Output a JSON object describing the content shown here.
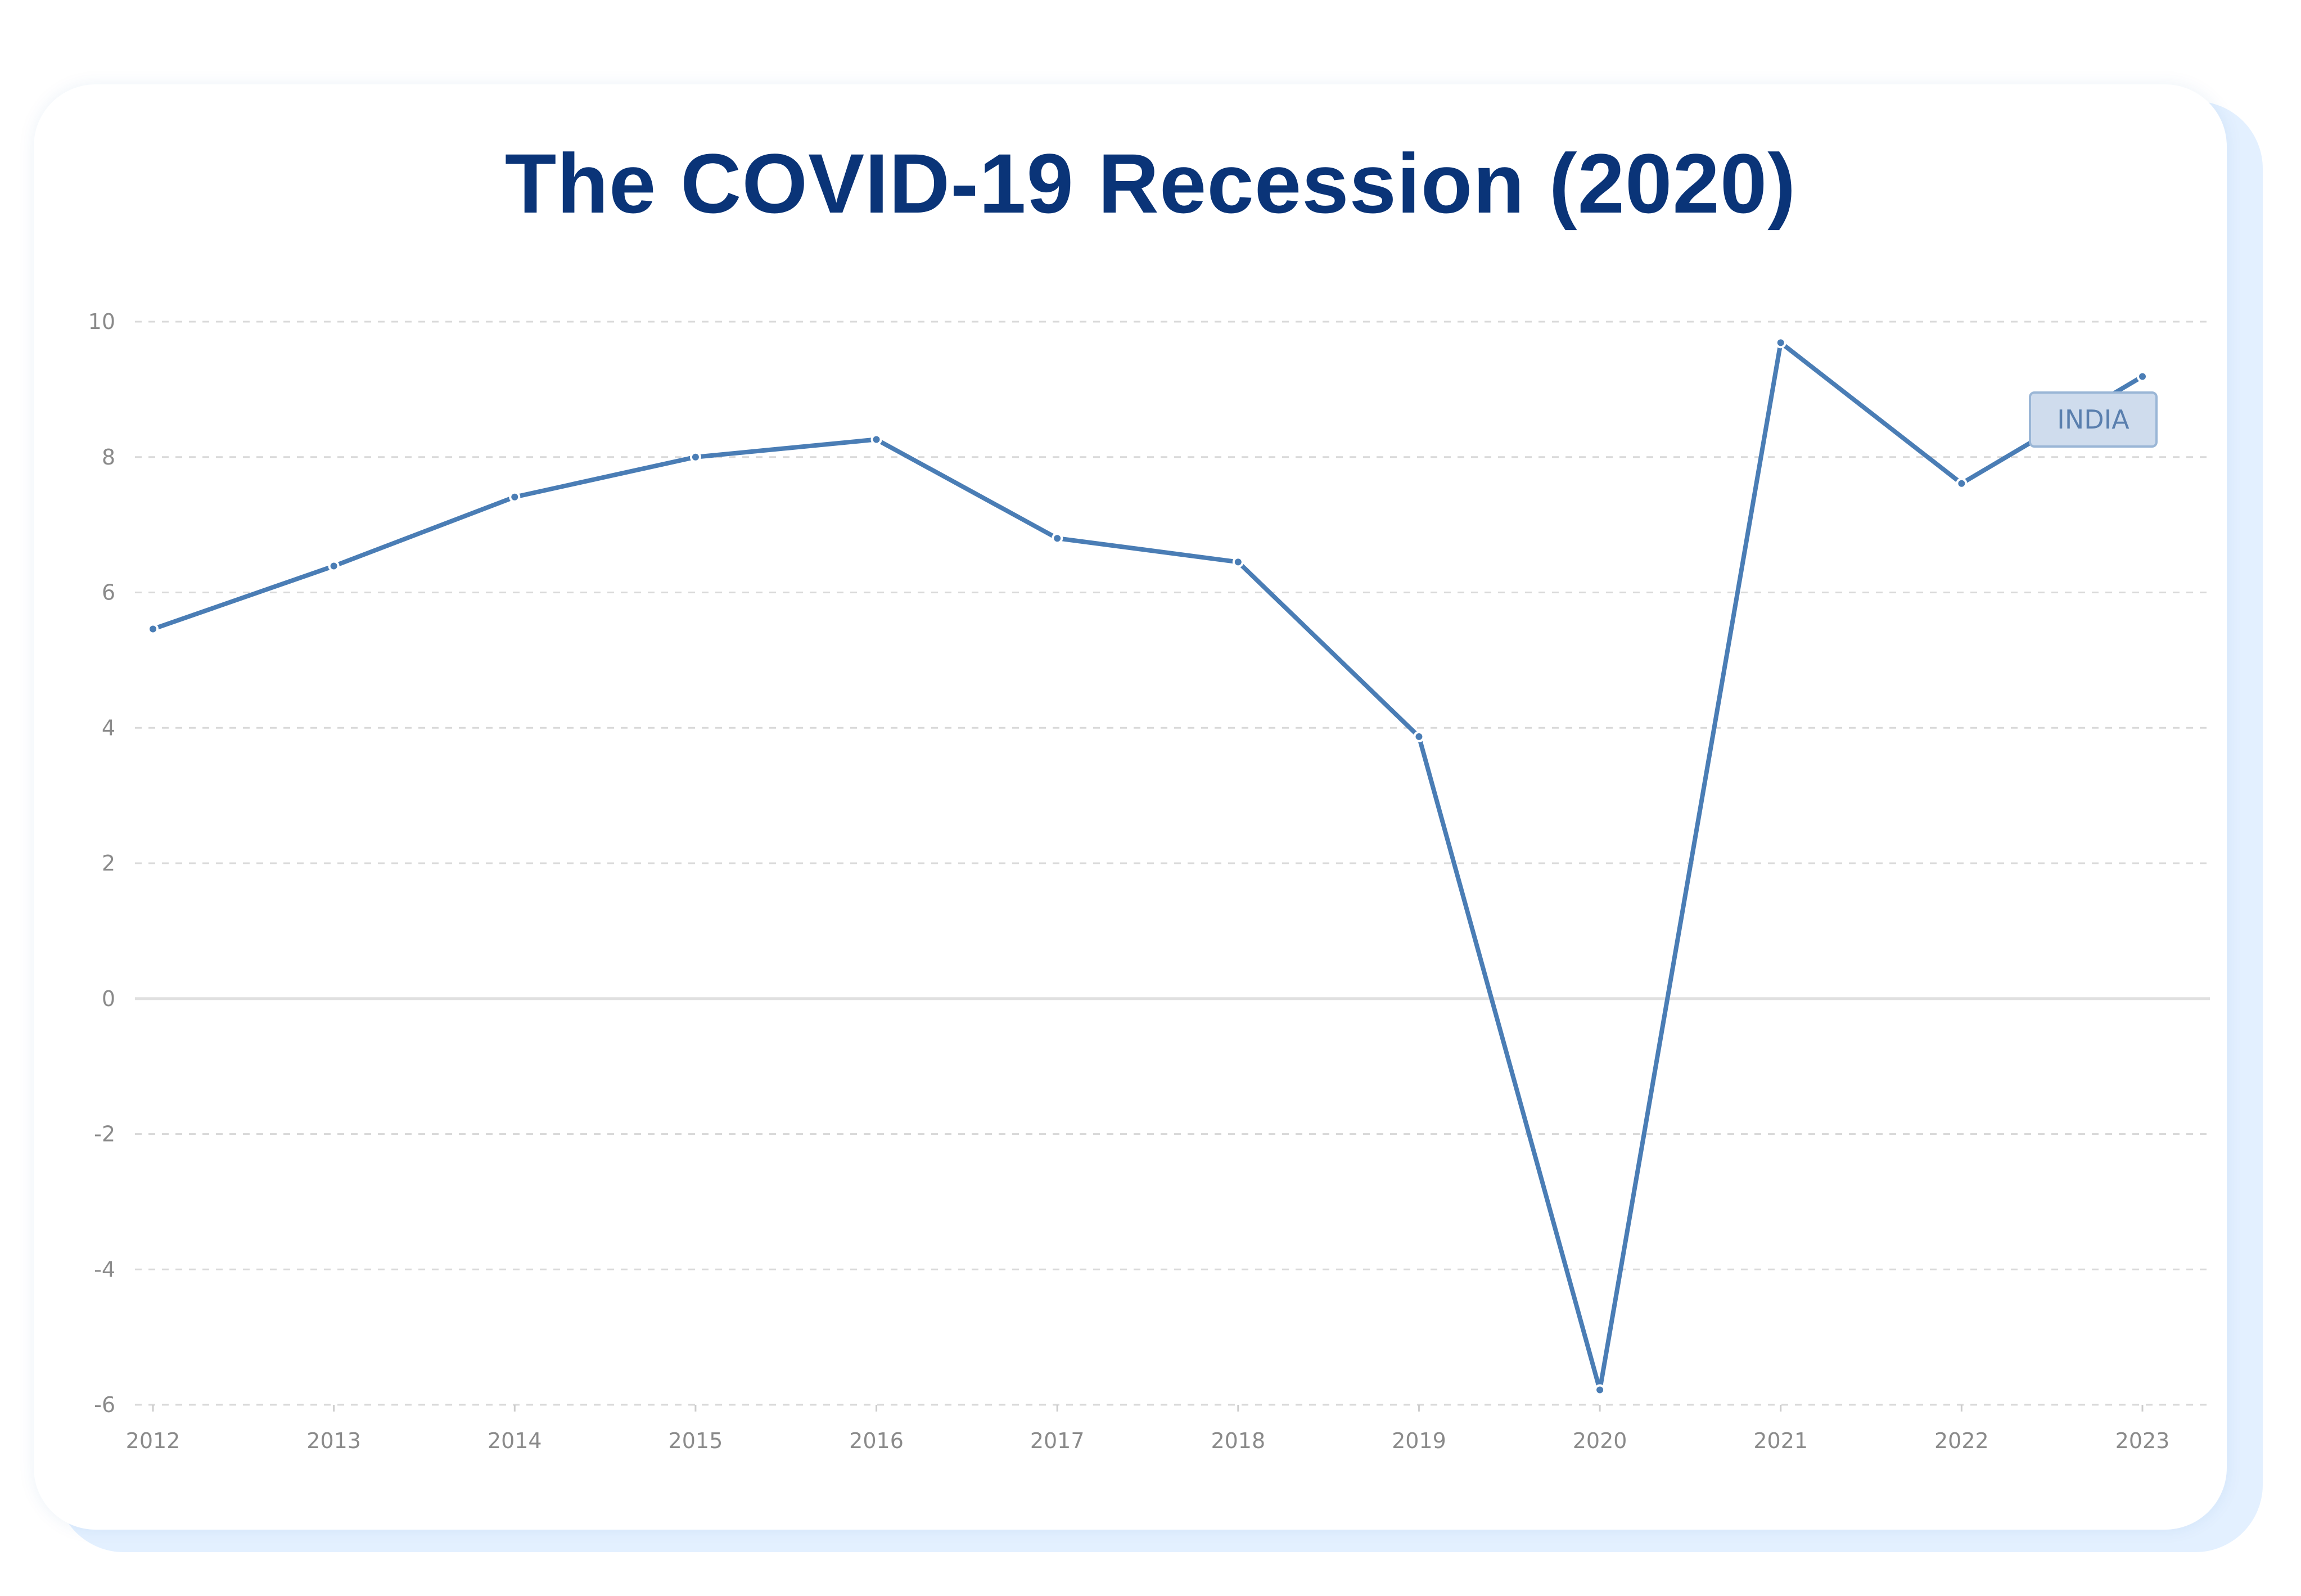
{
  "title": "The COVID-19 Recession (2020)",
  "colors": {
    "title": "#0a3478",
    "line": "#4a7db5",
    "card_shadow": "#e3f0ff",
    "grid": "#d9d9d9",
    "zero_line": "#e0e0e0",
    "legend_fill": "#cfdced",
    "legend_border": "#9ab6d6"
  },
  "chart_data": {
    "type": "line",
    "x": [
      "2012",
      "2013",
      "2014",
      "2015",
      "2016",
      "2017",
      "2018",
      "2019",
      "2020",
      "2021",
      "2022",
      "2023"
    ],
    "series": [
      {
        "name": "INDIA",
        "values": [
          5.46,
          6.39,
          7.41,
          8.0,
          8.26,
          6.8,
          6.45,
          3.87,
          -5.78,
          9.69,
          7.61,
          9.19
        ]
      }
    ],
    "yticks": [
      "10",
      "8",
      "6",
      "4",
      "2",
      "0",
      "-2",
      "-4",
      "-6"
    ],
    "ylim": [
      -6,
      10
    ],
    "xlabel": "",
    "ylabel": "",
    "grid": true,
    "legend_position": "top-right"
  }
}
